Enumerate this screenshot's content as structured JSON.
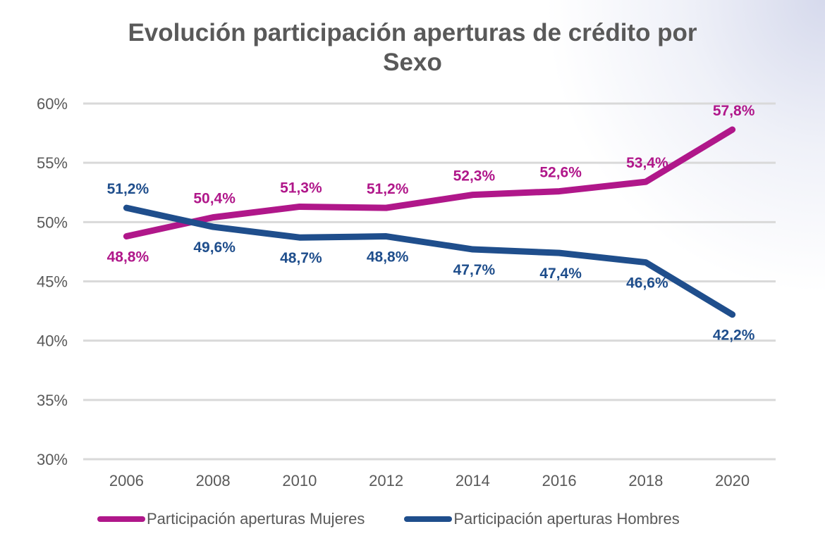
{
  "chart_data": {
    "type": "line",
    "title": "Evolución participación aperturas de crédito por Sexo",
    "title_lines": [
      "Evolución participación aperturas de crédito por",
      "Sexo"
    ],
    "categories": [
      "2006",
      "2008",
      "2010",
      "2012",
      "2014",
      "2016",
      "2018",
      "2020"
    ],
    "ylim": [
      30,
      60
    ],
    "yticks": [
      "30%",
      "35%",
      "40%",
      "45%",
      "50%",
      "55%",
      "60%"
    ],
    "grid": true,
    "legend_position": "bottom",
    "series": [
      {
        "name": "Participación aperturas Mujeres",
        "color": "#B0178A",
        "values": [
          48.8,
          50.4,
          51.3,
          51.2,
          52.3,
          52.6,
          53.4,
          57.8
        ],
        "labels": [
          "48,8%",
          "50,4%",
          "51,3%",
          "51,2%",
          "52,3%",
          "52,6%",
          "53,4%",
          "57,8%"
        ]
      },
      {
        "name": "Participación aperturas Hombres",
        "color": "#1F4E8C",
        "values": [
          51.2,
          49.6,
          48.7,
          48.8,
          47.7,
          47.4,
          46.6,
          42.2
        ],
        "labels": [
          "51,2%",
          "49,6%",
          "48,7%",
          "48,8%",
          "47,7%",
          "47,4%",
          "46,6%",
          "42,2%"
        ]
      }
    ]
  }
}
